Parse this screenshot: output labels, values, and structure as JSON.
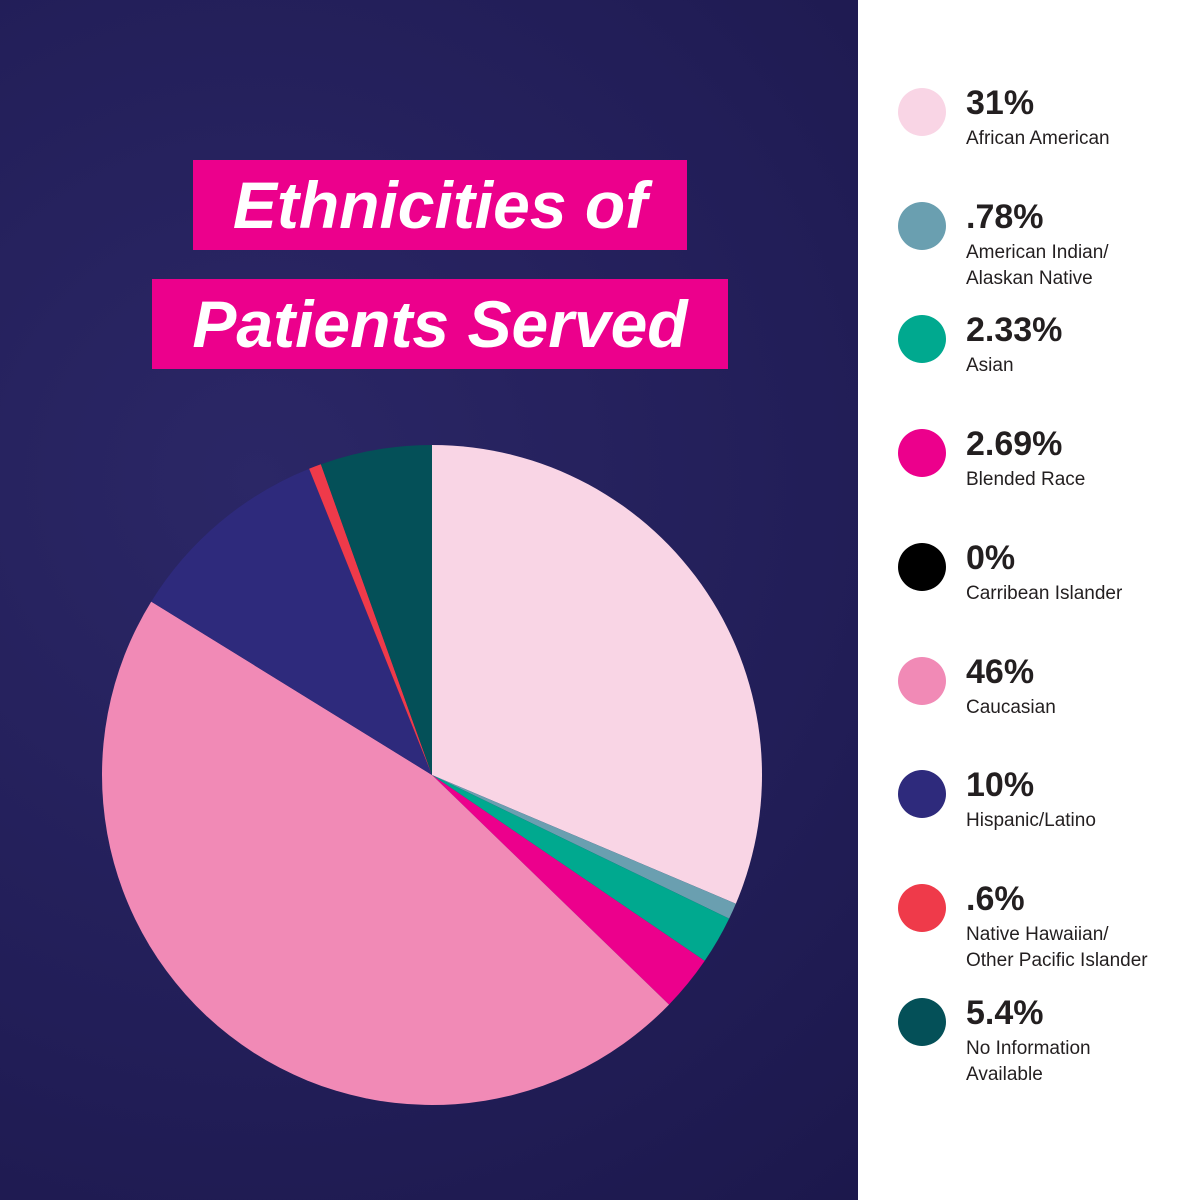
{
  "chart_data": {
    "type": "pie",
    "title": "Ethnicities of\nPatients Served",
    "categories": [
      "African American",
      "American Indian/\nAlaskan Native",
      "Asian",
      "Blended Race",
      "Carribean Islander",
      "Caucasian",
      "Hispanic/Latino",
      "Native Hawaiian/\nOther Pacific Islander",
      "No Information\nAvailable"
    ],
    "values": [
      31,
      0.78,
      2.33,
      2.69,
      0,
      46,
      10,
      0.6,
      5.4
    ],
    "value_labels": [
      "31%",
      ".78%",
      "2.33%",
      "2.69%",
      "0%",
      "46%",
      "10%",
      ".6%",
      "5.4%"
    ],
    "colors": [
      "#f9d5e5",
      "#6a9fb0",
      "#00a98f",
      "#ec008c",
      "#000000",
      "#f18ab6",
      "#2e2a7c",
      "#ef3a4a",
      "#045058"
    ]
  }
}
